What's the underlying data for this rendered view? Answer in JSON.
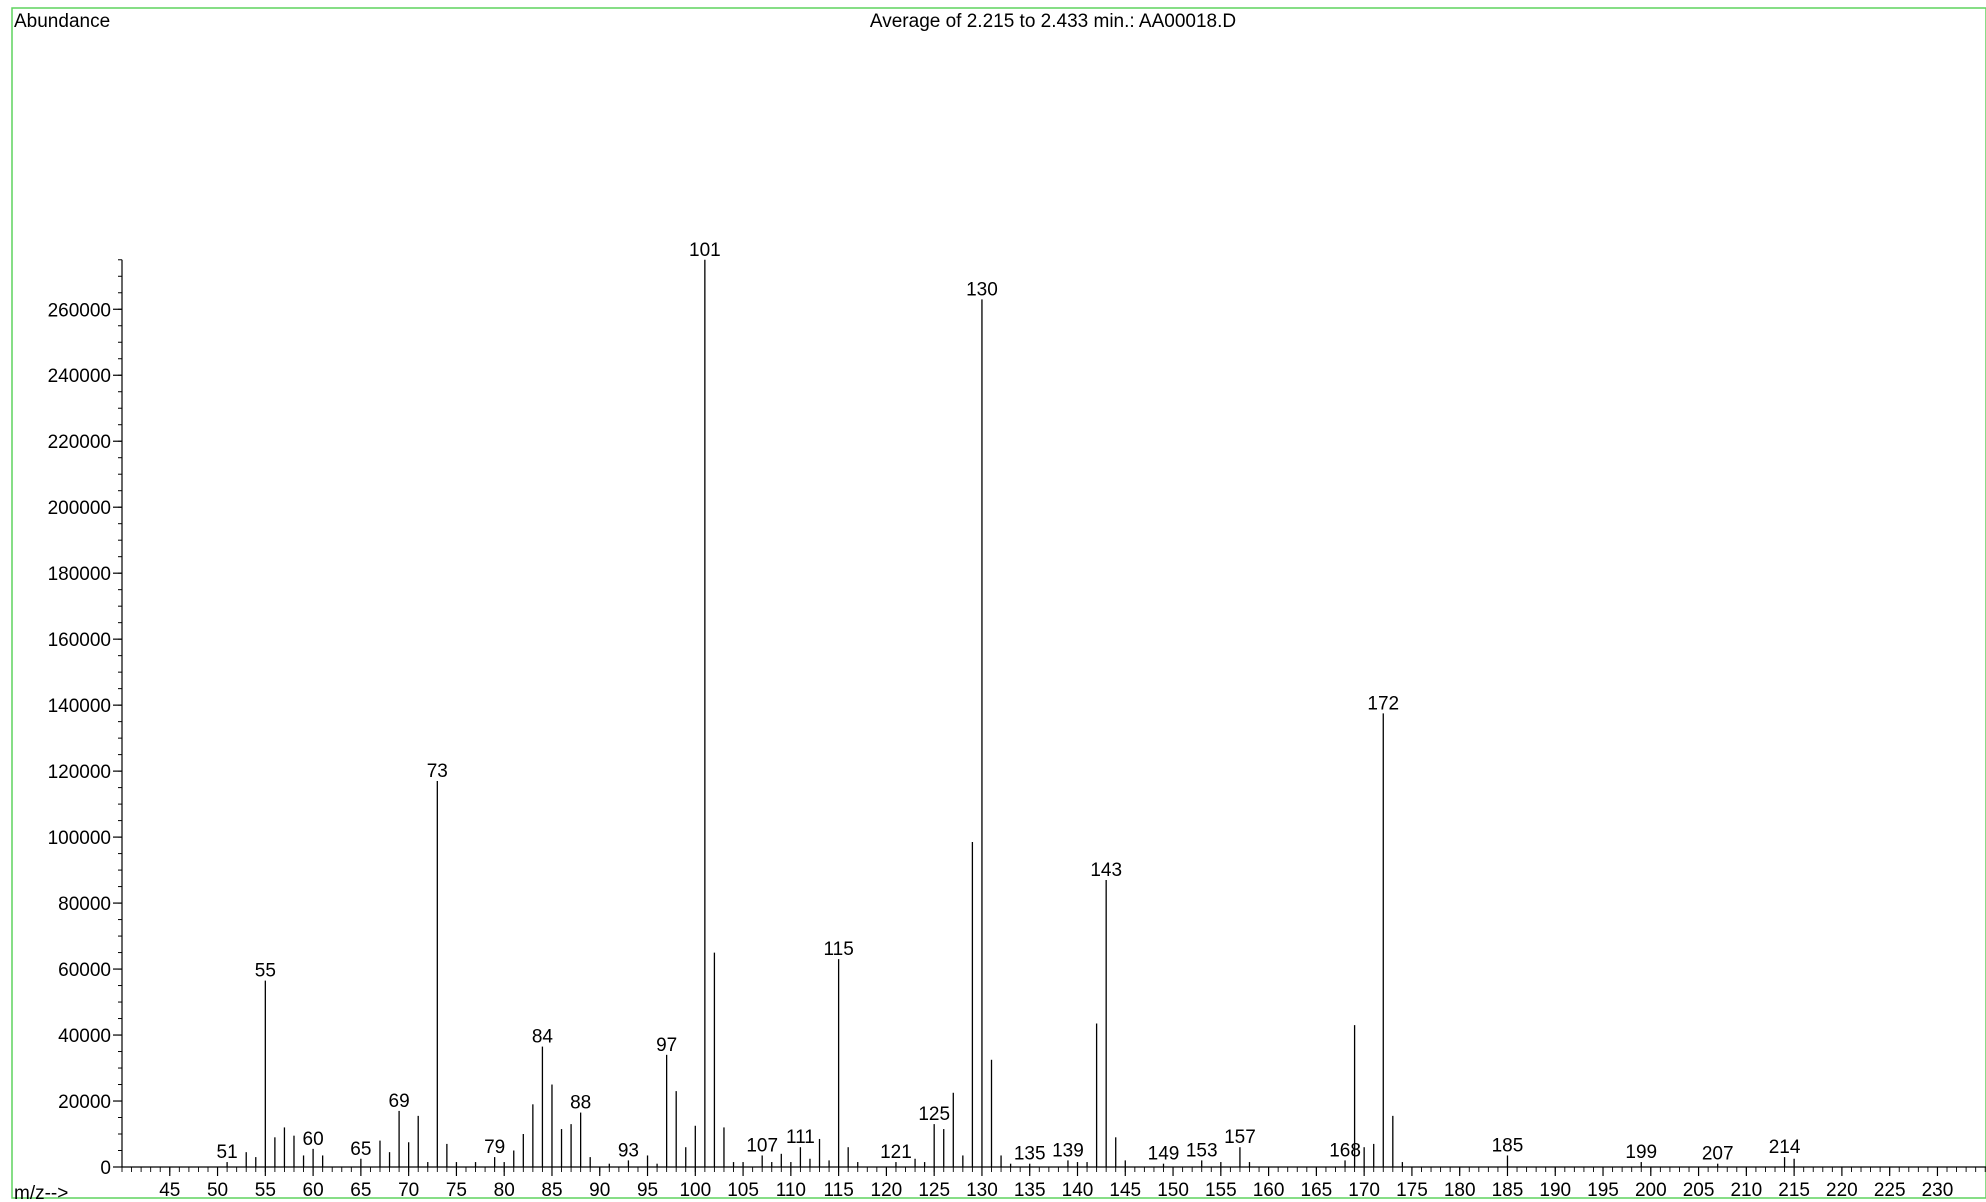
{
  "chart_data": {
    "type": "bar",
    "title": "Average of 2.215 to 2.433 min.: AA00018.D",
    "ylabel": "Abundance",
    "xlabel": "m/z-->",
    "xlim": [
      40,
      235
    ],
    "ylim": [
      0,
      275000
    ],
    "grid": false,
    "legend": "none",
    "x_ticks": [
      45,
      50,
      55,
      60,
      65,
      70,
      75,
      80,
      85,
      90,
      95,
      100,
      105,
      110,
      115,
      120,
      125,
      130,
      135,
      140,
      145,
      150,
      155,
      160,
      165,
      170,
      175,
      180,
      185,
      190,
      195,
      200,
      205,
      210,
      215,
      220,
      225,
      230
    ],
    "y_ticks": [
      0,
      20000,
      40000,
      60000,
      80000,
      100000,
      120000,
      140000,
      160000,
      180000,
      200000,
      220000,
      240000,
      260000
    ],
    "series": [
      {
        "x": [
          51,
          53,
          54,
          55,
          56,
          57,
          58,
          59,
          60,
          61,
          65,
          67,
          68,
          69,
          70,
          71,
          72,
          73,
          74,
          75,
          77,
          79,
          80,
          81,
          82,
          83,
          84,
          85,
          86,
          87,
          88,
          89,
          91,
          93,
          95,
          96,
          97,
          98,
          99,
          100,
          101,
          102,
          103,
          104,
          105,
          107,
          108,
          109,
          110,
          111,
          112,
          113,
          114,
          115,
          116,
          117,
          121,
          123,
          124,
          125,
          126,
          127,
          128,
          129,
          130,
          131,
          132,
          133,
          135,
          139,
          140,
          141,
          142,
          143,
          144,
          145,
          149,
          153,
          155,
          157,
          158,
          168,
          169,
          170,
          171,
          172,
          173,
          174,
          185,
          199,
          207,
          214,
          215
        ],
        "values": [
          1500,
          4500,
          3000,
          56500,
          9000,
          12000,
          9500,
          3500,
          5500,
          3500,
          2500,
          8000,
          4500,
          17000,
          7500,
          15500,
          1500,
          117000,
          7000,
          1500,
          1500,
          3000,
          1500,
          5000,
          10000,
          19000,
          36500,
          25000,
          11500,
          13000,
          16500,
          3000,
          1000,
          2000,
          3500,
          1000,
          34000,
          23000,
          6000,
          12500,
          275000,
          65000,
          12000,
          1500,
          1500,
          3500,
          1500,
          4000,
          1500,
          6000,
          2500,
          8500,
          2000,
          63000,
          6000,
          1500,
          1500,
          2500,
          1500,
          13000,
          11500,
          22500,
          3500,
          98500,
          263000,
          32500,
          3500,
          1000,
          1000,
          2000,
          1500,
          1500,
          43500,
          87000,
          9000,
          2000,
          1000,
          2000,
          1500,
          6000,
          1500,
          2000,
          43000,
          6000,
          7000,
          137500,
          15500,
          1500,
          3500,
          1500,
          1000,
          3000,
          2500
        ]
      }
    ],
    "annotations": [
      {
        "x": 51,
        "label": "51"
      },
      {
        "x": 55,
        "label": "55"
      },
      {
        "x": 60,
        "label": "60"
      },
      {
        "x": 65,
        "label": "65"
      },
      {
        "x": 69,
        "label": "69"
      },
      {
        "x": 73,
        "label": "73"
      },
      {
        "x": 79,
        "label": "79"
      },
      {
        "x": 84,
        "label": "84"
      },
      {
        "x": 88,
        "label": "88"
      },
      {
        "x": 93,
        "label": "93"
      },
      {
        "x": 97,
        "label": "97"
      },
      {
        "x": 101,
        "label": "101"
      },
      {
        "x": 107,
        "label": "107"
      },
      {
        "x": 111,
        "label": "111"
      },
      {
        "x": 115,
        "label": "115"
      },
      {
        "x": 121,
        "label": "121"
      },
      {
        "x": 125,
        "label": "125"
      },
      {
        "x": 130,
        "label": "130"
      },
      {
        "x": 135,
        "label": "135"
      },
      {
        "x": 139,
        "label": "139"
      },
      {
        "x": 143,
        "label": "143"
      },
      {
        "x": 149,
        "label": "149"
      },
      {
        "x": 153,
        "label": "153"
      },
      {
        "x": 157,
        "label": "157"
      },
      {
        "x": 168,
        "label": "168"
      },
      {
        "x": 172,
        "label": "172"
      },
      {
        "x": 185,
        "label": "185"
      },
      {
        "x": 199,
        "label": "199"
      },
      {
        "x": 207,
        "label": "207"
      },
      {
        "x": 214,
        "label": "214"
      }
    ],
    "colors": {
      "frame": "#5fd35f",
      "bars": "#000000",
      "axes": "#000000",
      "text": "#000000"
    }
  }
}
